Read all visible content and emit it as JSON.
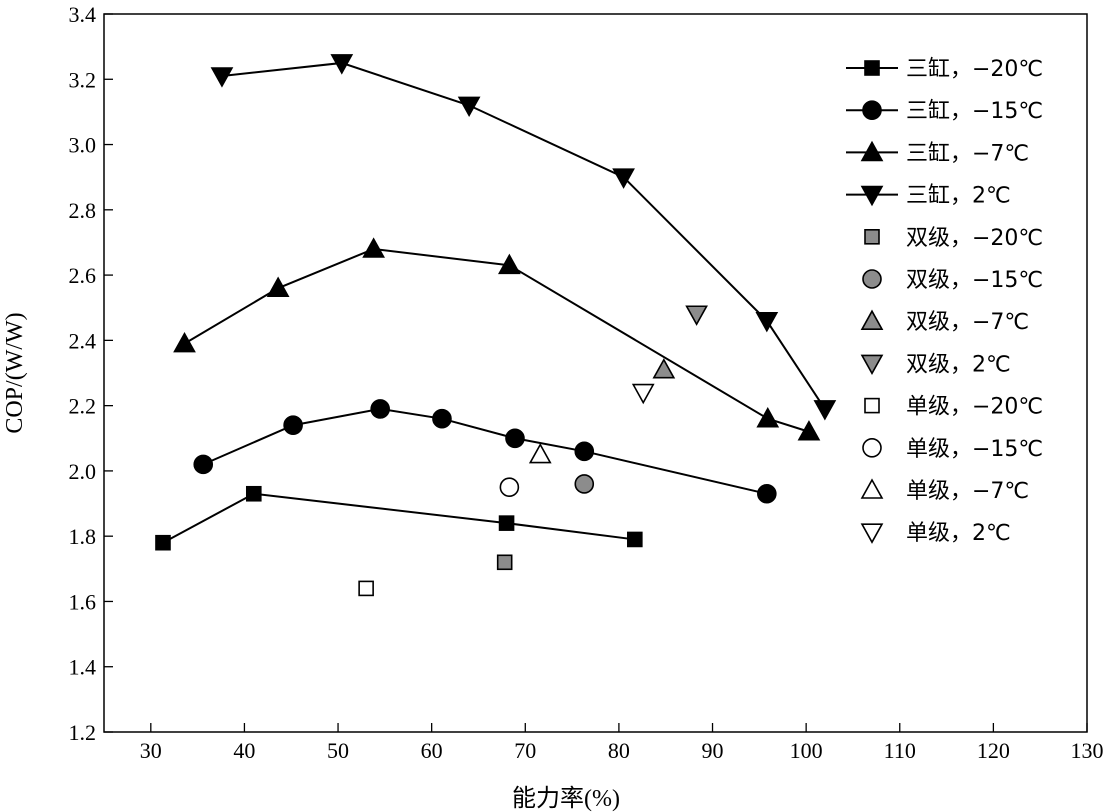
{
  "chart_data": {
    "type": "scatter",
    "xlabel": "能力率(%)",
    "ylabel": "COP/(W/W)",
    "xlim": [
      25,
      130
    ],
    "ylim": [
      1.2,
      3.4
    ],
    "xticks": [
      30,
      40,
      50,
      60,
      70,
      80,
      90,
      100,
      110,
      120,
      130
    ],
    "yticks": [
      1.2,
      1.4,
      1.6,
      1.8,
      2.0,
      2.2,
      2.4,
      2.6,
      2.8,
      3.0,
      3.2,
      3.4
    ],
    "grid": false,
    "legend_position": "top-right",
    "series": [
      {
        "name": "三缸，−20℃",
        "marker": "square",
        "fill": "#000000",
        "line": true,
        "points": [
          [
            31.3,
            1.78
          ],
          [
            41.0,
            1.93
          ],
          [
            68.0,
            1.84
          ],
          [
            81.7,
            1.79
          ]
        ]
      },
      {
        "name": "三缸，−15℃",
        "marker": "circle",
        "fill": "#000000",
        "line": true,
        "points": [
          [
            35.6,
            2.02
          ],
          [
            45.2,
            2.14
          ],
          [
            54.5,
            2.19
          ],
          [
            61.1,
            2.16
          ],
          [
            68.9,
            2.1
          ],
          [
            76.3,
            2.06
          ],
          [
            95.8,
            1.93
          ]
        ]
      },
      {
        "name": "三缸，−7℃",
        "marker": "triangle-up",
        "fill": "#000000",
        "line": true,
        "points": [
          [
            33.6,
            2.39
          ],
          [
            43.6,
            2.56
          ],
          [
            53.8,
            2.68
          ],
          [
            68.3,
            2.63
          ],
          [
            95.9,
            2.16
          ],
          [
            100.3,
            2.12
          ]
        ]
      },
      {
        "name": "三缸，2℃",
        "marker": "triangle-down",
        "fill": "#000000",
        "line": true,
        "points": [
          [
            37.6,
            3.21
          ],
          [
            50.4,
            3.25
          ],
          [
            64.0,
            3.12
          ],
          [
            80.5,
            2.9
          ],
          [
            95.8,
            2.46
          ],
          [
            102.0,
            2.19
          ]
        ]
      },
      {
        "name": "双级，−20℃",
        "marker": "square",
        "fill": "#8c8c8c",
        "line": false,
        "points": [
          [
            67.8,
            1.72
          ]
        ]
      },
      {
        "name": "双级，−15℃",
        "marker": "circle",
        "fill": "#8c8c8c",
        "line": false,
        "points": [
          [
            76.3,
            1.96
          ]
        ]
      },
      {
        "name": "双级，−7℃",
        "marker": "triangle-up",
        "fill": "#8c8c8c",
        "line": false,
        "points": [
          [
            84.8,
            2.31
          ]
        ]
      },
      {
        "name": "双级，2℃",
        "marker": "triangle-down",
        "fill": "#8c8c8c",
        "line": false,
        "points": [
          [
            88.3,
            2.48
          ]
        ]
      },
      {
        "name": "单级，−20℃",
        "marker": "square",
        "fill": "#ffffff",
        "line": false,
        "points": [
          [
            53.0,
            1.64
          ]
        ]
      },
      {
        "name": "单级，−15℃",
        "marker": "circle",
        "fill": "#ffffff",
        "line": false,
        "points": [
          [
            68.3,
            1.95
          ]
        ]
      },
      {
        "name": "单级，−7℃",
        "marker": "triangle-up",
        "fill": "#ffffff",
        "line": false,
        "points": [
          [
            71.6,
            2.05
          ]
        ]
      },
      {
        "name": "单级，2℃",
        "marker": "triangle-down",
        "fill": "#ffffff",
        "line": false,
        "points": [
          [
            82.6,
            2.24
          ]
        ]
      }
    ]
  }
}
